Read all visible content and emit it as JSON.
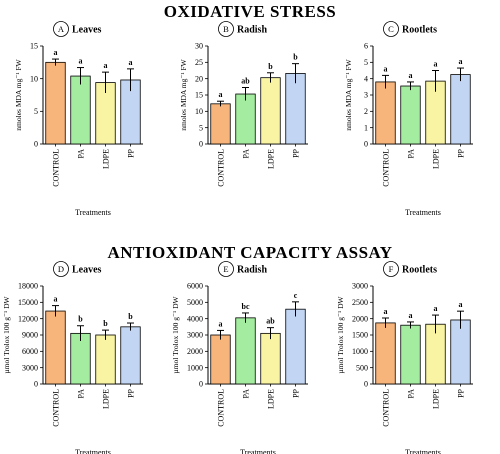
{
  "figure": {
    "section_titles": [
      "OXIDATIVE STRESS",
      "ANTIOXIDANT CAPACITY ASSAY"
    ],
    "colors": {
      "CONTROL": "#F7B57C",
      "PA": "#A4EDA0",
      "LDPE": "#F8F4A4",
      "PP": "#C2D6F4",
      "stroke": "#000000"
    }
  },
  "chart_data": [
    {
      "type": "bar",
      "panel_letter": "A",
      "title": "Leaves",
      "xlabel": "Treatments",
      "ylabel": "nmoles MDA mg⁻¹ FW",
      "categories": [
        "CONTROL",
        "PA",
        "LDPE",
        "PP"
      ],
      "values": [
        12.5,
        10.4,
        9.4,
        9.8
      ],
      "errors": [
        0.5,
        1.3,
        1.6,
        1.7
      ],
      "significance": [
        "a",
        "a",
        "a",
        "a"
      ],
      "yticks": [
        0,
        5,
        10,
        15
      ],
      "ylim": [
        0,
        15
      ]
    },
    {
      "type": "bar",
      "panel_letter": "B",
      "title": "Radish",
      "xlabel": "",
      "ylabel": "nmoles MDA mg⁻¹ FW",
      "categories": [
        "CONTROL",
        "PA",
        "LDPE",
        "PP"
      ],
      "values": [
        12.3,
        15.3,
        20.3,
        21.6
      ],
      "errors": [
        0.8,
        2.0,
        1.5,
        3.0
      ],
      "significance": [
        "a",
        "ab",
        "b",
        "b"
      ],
      "yticks": [
        0,
        5,
        10,
        15,
        20,
        25,
        30
      ],
      "ylim": [
        0,
        30
      ]
    },
    {
      "type": "bar",
      "panel_letter": "C",
      "title": "Rootlets",
      "xlabel": "Treatments",
      "ylabel": "nmoles MDA mg⁻¹ FW",
      "categories": [
        "CONTROL",
        "PA",
        "LDPE",
        "PP"
      ],
      "values": [
        3.8,
        3.55,
        3.85,
        4.25
      ],
      "errors": [
        0.4,
        0.25,
        0.65,
        0.4
      ],
      "significance": [
        "a",
        "a",
        "a",
        "a"
      ],
      "yticks": [
        0,
        1,
        2,
        3,
        4,
        5,
        6
      ],
      "ylim": [
        0,
        6
      ]
    },
    {
      "type": "bar",
      "panel_letter": "D",
      "title": "Leaves",
      "xlabel": "Treatments",
      "ylabel": "µmol Trolox 100 g⁻¹ DW",
      "categories": [
        "CONTROL",
        "PA",
        "LDPE",
        "PP"
      ],
      "values": [
        13400,
        9300,
        9000,
        10500
      ],
      "errors": [
        1000,
        1400,
        900,
        700
      ],
      "significance": [
        "a",
        "b",
        "b",
        "b"
      ],
      "yticks": [
        0,
        3000,
        6000,
        9000,
        12000,
        15000,
        18000
      ],
      "ylim": [
        0,
        18000
      ]
    },
    {
      "type": "bar",
      "panel_letter": "E",
      "title": "Radish",
      "xlabel": "Treatments",
      "ylabel": "µmol Trolox 100 g⁻¹ DW",
      "categories": [
        "CONTROL",
        "PA",
        "LDPE",
        "PP"
      ],
      "values": [
        3000,
        4050,
        3100,
        4580
      ],
      "errors": [
        280,
        300,
        350,
        450
      ],
      "significance": [
        "a",
        "bc",
        "ab",
        "c"
      ],
      "yticks": [
        0,
        1000,
        2000,
        3000,
        4000,
        5000,
        6000
      ],
      "ylim": [
        0,
        6000
      ]
    },
    {
      "type": "bar",
      "panel_letter": "F",
      "title": "Rootlets",
      "xlabel": "Treatments",
      "ylabel": "µmol Trolox 100 g⁻¹ DW",
      "categories": [
        "CONTROL",
        "PA",
        "LDPE",
        "PP"
      ],
      "values": [
        1870,
        1800,
        1830,
        1960
      ],
      "errors": [
        150,
        100,
        280,
        270
      ],
      "significance": [
        "a",
        "a",
        "a",
        "a"
      ],
      "yticks": [
        0,
        500,
        1000,
        1500,
        2000,
        2500,
        3000
      ],
      "ylim": [
        0,
        3000
      ]
    }
  ]
}
